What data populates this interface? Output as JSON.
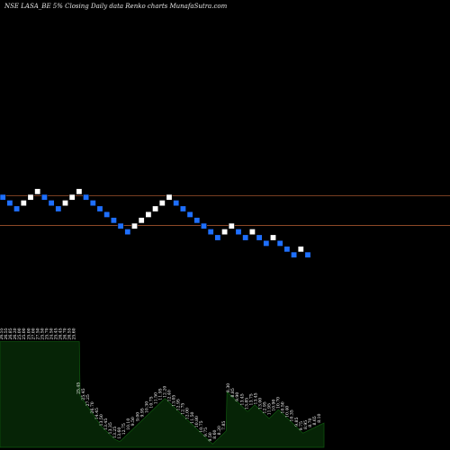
{
  "title": "NSE LASA_BE 5% Closing Daily data Renko charts MunafaSutra.com",
  "colors": {
    "up_brick": "#ffffff",
    "down_brick": "#1e6fff",
    "brick_border": "#000000",
    "reference_line": "#a0522d",
    "volume_fill": "#062406",
    "volume_line": "#0f5a0f",
    "background": "#000000"
  },
  "chart_data": [
    {
      "type": "renko",
      "title": "NSE LASA_BE 5% Closing Daily data Renko charts MunafaSutra.com",
      "brick_size_label": "5%",
      "direction_levels": [
        {
          "dir": "down",
          "level": 0
        },
        {
          "dir": "down",
          "level": -1
        },
        {
          "dir": "down",
          "level": -2
        },
        {
          "dir": "up",
          "level": -1
        },
        {
          "dir": "up",
          "level": 0
        },
        {
          "dir": "up",
          "level": 1
        },
        {
          "dir": "down",
          "level": 0
        },
        {
          "dir": "down",
          "level": -1
        },
        {
          "dir": "down",
          "level": -2
        },
        {
          "dir": "up",
          "level": -1
        },
        {
          "dir": "up",
          "level": 0
        },
        {
          "dir": "up",
          "level": 1
        },
        {
          "dir": "down",
          "level": 0
        },
        {
          "dir": "down",
          "level": -1
        },
        {
          "dir": "down",
          "level": -2
        },
        {
          "dir": "down",
          "level": -3
        },
        {
          "dir": "down",
          "level": -4
        },
        {
          "dir": "down",
          "level": -5
        },
        {
          "dir": "down",
          "level": -6
        },
        {
          "dir": "up",
          "level": -5
        },
        {
          "dir": "up",
          "level": -4
        },
        {
          "dir": "up",
          "level": -3
        },
        {
          "dir": "up",
          "level": -2
        },
        {
          "dir": "up",
          "level": -1
        },
        {
          "dir": "up",
          "level": 0
        },
        {
          "dir": "down",
          "level": -1
        },
        {
          "dir": "down",
          "level": -2
        },
        {
          "dir": "down",
          "level": -3
        },
        {
          "dir": "down",
          "level": -4
        },
        {
          "dir": "down",
          "level": -5
        },
        {
          "dir": "down",
          "level": -6
        },
        {
          "dir": "down",
          "level": -7
        },
        {
          "dir": "up",
          "level": -6
        },
        {
          "dir": "up",
          "level": -5
        },
        {
          "dir": "down",
          "level": -6
        },
        {
          "dir": "down",
          "level": -7
        },
        {
          "dir": "up",
          "level": -6
        },
        {
          "dir": "down",
          "level": -7
        },
        {
          "dir": "down",
          "level": -8
        },
        {
          "dir": "up",
          "level": -7
        },
        {
          "dir": "down",
          "level": -8
        },
        {
          "dir": "down",
          "level": -9
        },
        {
          "dir": "down",
          "level": -10
        },
        {
          "dir": "up",
          "level": -9
        },
        {
          "dir": "down",
          "level": -10
        }
      ],
      "reference_levels": [
        -0.25,
        -5.4
      ]
    },
    {
      "type": "area",
      "series": [
        {
          "values": [
            26.1,
            26.1,
            26.1,
            26.1,
            26.1,
            26.1,
            26.1,
            26.1,
            26.1,
            26.1,
            26.1,
            26.1,
            26.1,
            26.1,
            26.1,
            26.1,
            26.1,
            26.1,
            26.1,
            26.1,
            26.1,
            26.1,
            26.1,
            26.1,
            26.1,
            26.1,
            26.1,
            26.1,
            26.1,
            26.1,
            26.1,
            26.1,
            26.1,
            26.1,
            26.1,
            26.1,
            26.1,
            26.1,
            26.1,
            26.1,
            26.1,
            26.1,
            26.1,
            26.1,
            26.1,
            26.1,
            26.1,
            26.1,
            26.1,
            26.1,
            26.1,
            26.1,
            26.1,
            26.1,
            26.1,
            26.1,
            26.1,
            26.1,
            26.1,
            26.1,
            26.1,
            26.1,
            26.1,
            26.1,
            26.1,
            26.1,
            26.1,
            26.1,
            26.1,
            26.1,
            26.1,
            26.1,
            26.1,
            26.1,
            26.1,
            26.1,
            26.1,
            26.1,
            26.1,
            26.1,
            26.1,
            26.1,
            26.1,
            26.1,
            26.1,
            26.1,
            26.1,
            26.1,
            26.1,
            26.1,
            26.1,
            26.1,
            26.1,
            26.1,
            26.1,
            12.7,
            12.4,
            12.1,
            11.8,
            11.5,
            11.2,
            10.9,
            10.6,
            10.3,
            10.0,
            9.7,
            9.4,
            9.1,
            8.8,
            8.5,
            8.2,
            7.9,
            7.6,
            7.3,
            7.0,
            6.7,
            6.4,
            6.1,
            5.8,
            5.5,
            5.2,
            5.0,
            4.8,
            4.6,
            4.4,
            4.2,
            4.0,
            3.8,
            3.6,
            3.4,
            3.2,
            3.0,
            2.8,
            2.6,
            2.4,
            2.2,
            2.0,
            1.9,
            1.8,
            1.7,
            1.6,
            1.5,
            1.5,
            1.6,
            1.8,
            2.0,
            2.2,
            2.4,
            2.6,
            2.8,
            3.0,
            3.2,
            3.4,
            3.6,
            3.8,
            4.0,
            4.2,
            4.4,
            4.6,
            4.8,
            5.0,
            5.2,
            5.4,
            5.6,
            5.8,
            6.0,
            6.2,
            6.4,
            6.6,
            6.8,
            7.0,
            7.2,
            7.4,
            7.6,
            7.8,
            8.0,
            8.2,
            8.4,
            8.6,
            8.8,
            9.0,
            9.2,
            9.4,
            9.6,
            9.8,
            10.0,
            10.2,
            10.4,
            10.6,
            10.8,
            11.0,
            11.2,
            11.4,
            11.6,
            11.8,
            12.0,
            12.0,
            11.8,
            11.6,
            11.4,
            11.2,
            11.0,
            10.8,
            10.6,
            10.4,
            10.2,
            10.0,
            9.8,
            9.6,
            9.4,
            9.2,
            9.0,
            8.8,
            8.6,
            8.4,
            8.2,
            8.0,
            7.8,
            7.6,
            7.4,
            7.2,
            7.0,
            6.8,
            6.6,
            6.4,
            6.2,
            6.0,
            5.8,
            5.6,
            5.4,
            5.2,
            5.0,
            4.8,
            4.6,
            4.4,
            4.2,
            4.0,
            3.8,
            3.6,
            3.4,
            3.2,
            3.0,
            2.8,
            2.6,
            2.4,
            2.2,
            2.0,
            1.8,
            1.6,
            1.4,
            1.2,
            1.0,
            0.8,
            1.0,
            1.2,
            1.4,
            1.6,
            1.8,
            2.0,
            2.2,
            2.4,
            2.6,
            2.8,
            3.0,
            3.2,
            3.4,
            3.6,
            3.8,
            4.0,
            13.7,
            13.5,
            13.3,
            13.1,
            12.9,
            12.7,
            12.5,
            12.3,
            12.1,
            11.9,
            11.7,
            11.5,
            11.3,
            11.1,
            10.9,
            10.7,
            10.5,
            10.3,
            10.1,
            9.9,
            9.7,
            9.5,
            9.3,
            9.1,
            8.9,
            8.9,
            9.1,
            9.3,
            9.5,
            9.7,
            9.9,
            10.1,
            10.3,
            10.5,
            10.3,
            10.1,
            9.9,
            9.7,
            9.5,
            9.3,
            9.1,
            8.9,
            8.7,
            8.5,
            8.3,
            8.1,
            7.9,
            7.7,
            7.5,
            7.3,
            7.1,
            7.3,
            7.5,
            7.7,
            7.9,
            8.1,
            8.3,
            8.5,
            8.7,
            8.9,
            9.1,
            9.3,
            9.1,
            8.9,
            8.7,
            8.5,
            8.3,
            8.1,
            7.9,
            7.7,
            7.5,
            7.3,
            7.1,
            6.9,
            6.7,
            6.5,
            6.3,
            6.1,
            5.9,
            5.7,
            5.5,
            5.3,
            5.1,
            4.9,
            4.7,
            4.5,
            4.3,
            4.1,
            3.9,
            3.7,
            3.5,
            3.6,
            3.7,
            3.8,
            3.9,
            4.0,
            4.1,
            4.2,
            4.3,
            4.4,
            4.5,
            4.6,
            4.7,
            4.8,
            4.9,
            5.0,
            5.1,
            5.2,
            5.3,
            5.4,
            5.5,
            5.6,
            5.7,
            5.8,
            5.9,
            6.0
          ]
        }
      ],
      "data_labels": [
        "26.55",
        "26.55",
        "26.85",
        "26.20",
        "25.00",
        "25.00",
        "25.00",
        "27.00",
        "27.50",
        "25.50",
        "25.70",
        "24.50",
        "25.45",
        "26.45",
        "26.70",
        "26.55",
        "25.60",
        "25.45",
        "25.45",
        "27.25",
        "26.70",
        "14.45",
        "13.50",
        "13.45",
        "13.35",
        "13.25",
        "13.60",
        "12.75",
        "10.10",
        "9.50",
        "9.00",
        "9.95",
        "10.30",
        "10.75",
        "11.50",
        "11.95",
        "12.20",
        "12.40",
        "13.05",
        "12.95",
        "12.75",
        "12.00",
        "11.50",
        "10.80",
        "10.75",
        "9.75",
        "9.50",
        "8.60",
        "8.20",
        "7.85",
        "8.30",
        "8.85",
        "9.90",
        "13.45",
        "13.85",
        "13.75",
        "13.45",
        "13.00",
        "12.95",
        "11.95",
        "10.90",
        "10.70",
        "10.50",
        "10.40",
        "10.35",
        "9.85",
        "9.75",
        "8.95",
        "8.70",
        "8.65",
        "8.10"
      ]
    }
  ]
}
